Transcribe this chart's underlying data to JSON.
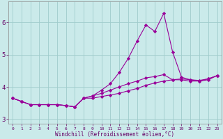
{
  "xlabel": "Windchill (Refroidissement éolien,°C)",
  "background_color": "#caeaea",
  "grid_color": "#a0cccc",
  "line_color": "#990099",
  "x_values": [
    0,
    1,
    2,
    3,
    4,
    5,
    6,
    7,
    8,
    9,
    10,
    11,
    12,
    13,
    14,
    15,
    16,
    17,
    18,
    19,
    20,
    21,
    22,
    23
  ],
  "x_labels": [
    "0",
    "1",
    "2",
    "3",
    "4",
    "5",
    "6",
    "7",
    "8",
    "9",
    "10",
    "11",
    "12",
    "13",
    "14",
    "15",
    "16",
    "17",
    "18",
    "19",
    "20",
    "21",
    "22",
    "23"
  ],
  "line1": [
    3.65,
    3.55,
    3.45,
    3.45,
    3.45,
    3.45,
    3.42,
    3.38,
    3.65,
    3.65,
    3.7,
    3.75,
    3.8,
    3.88,
    3.95,
    4.05,
    4.12,
    4.18,
    4.22,
    4.25,
    4.22,
    4.2,
    4.25,
    4.35
  ],
  "line2": [
    3.65,
    3.55,
    3.45,
    3.45,
    3.45,
    3.45,
    3.42,
    3.38,
    3.65,
    3.72,
    3.8,
    3.9,
    4.0,
    4.1,
    4.18,
    4.28,
    4.32,
    4.38,
    4.22,
    4.22,
    4.18,
    4.18,
    4.25,
    4.35
  ],
  "line3": [
    3.65,
    3.55,
    3.45,
    3.45,
    3.45,
    3.45,
    3.42,
    3.38,
    3.65,
    3.72,
    3.9,
    4.1,
    4.45,
    4.88,
    5.42,
    5.92,
    5.72,
    6.28,
    5.08,
    4.3,
    4.22,
    4.18,
    4.22,
    4.35
  ],
  "ylim": [
    2.85,
    6.65
  ],
  "yticks": [
    3,
    4,
    5,
    6
  ],
  "marker": "D",
  "marker_size": 2.2,
  "line_width": 0.8
}
